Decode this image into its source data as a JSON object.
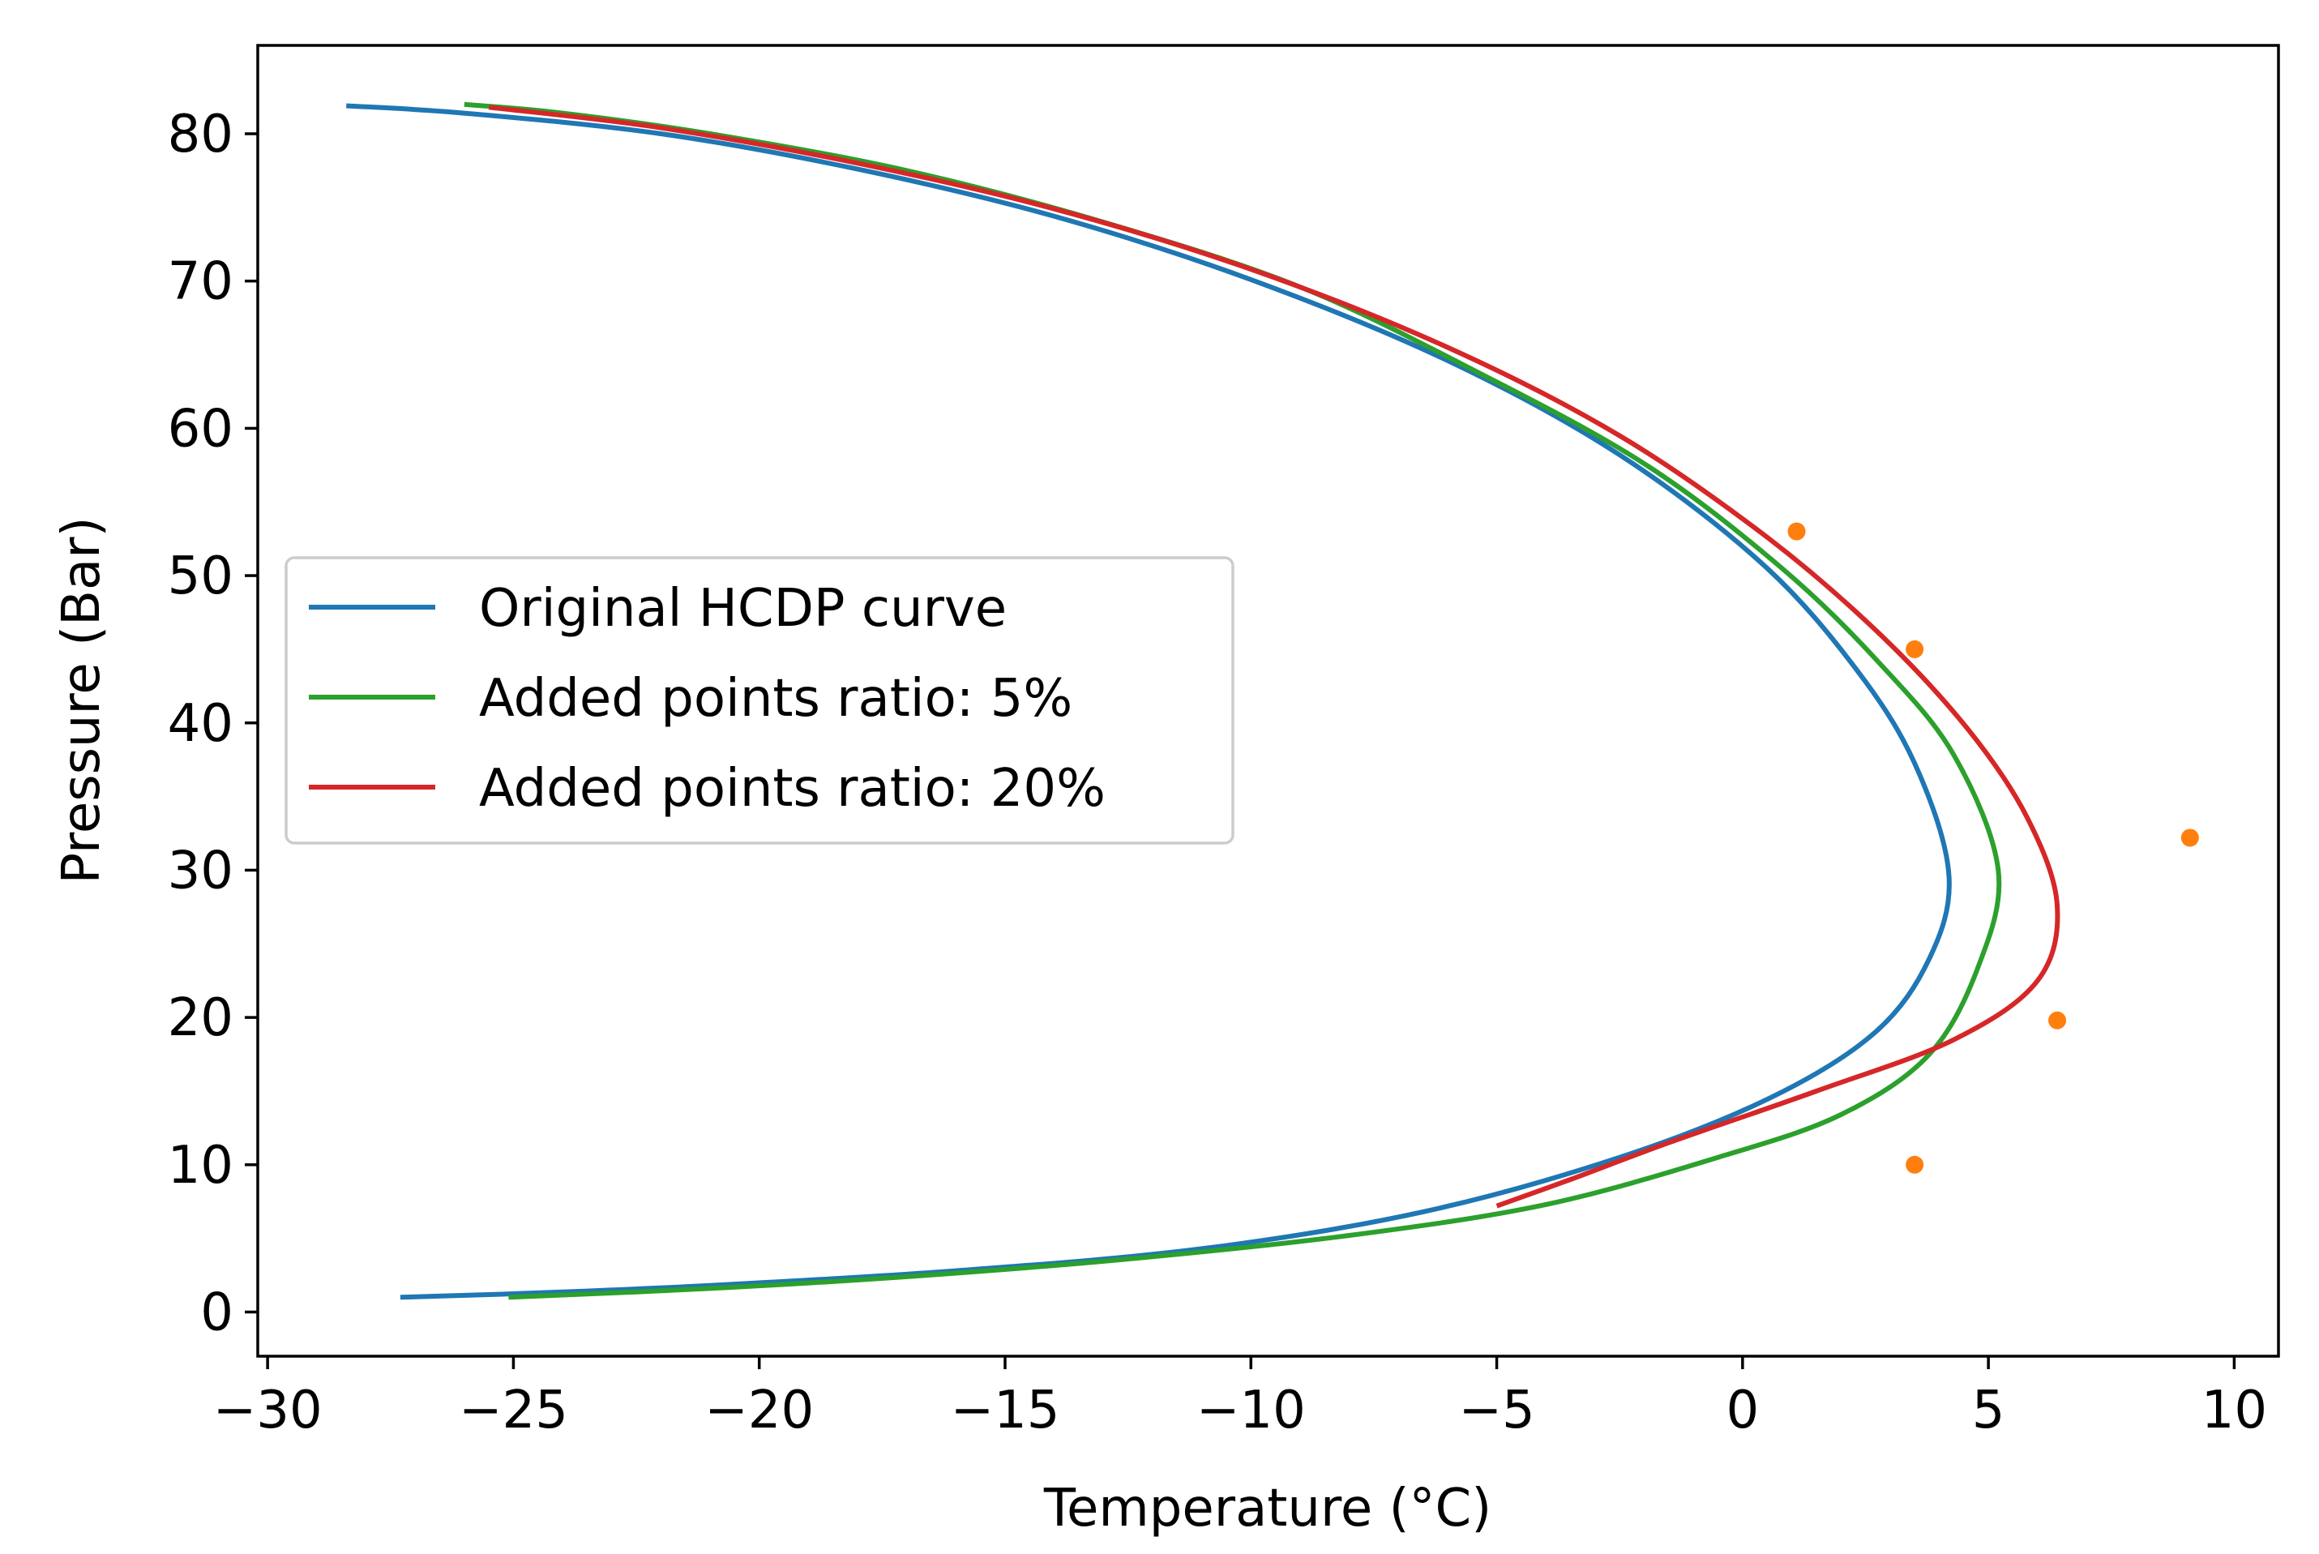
{
  "chart_data": {
    "type": "line",
    "xlabel": "Temperature (°C)",
    "ylabel": "Pressure (Bar)",
    "xlim": [
      -30.2,
      10.9
    ],
    "ylim": [
      -3,
      86
    ],
    "xticks": [
      -30,
      -25,
      -20,
      -15,
      -10,
      -5,
      0,
      5,
      10
    ],
    "xtick_labels": [
      "−30",
      "−25",
      "−20",
      "−15",
      "−10",
      "−5",
      "0",
      "5",
      "10"
    ],
    "yticks": [
      0,
      10,
      20,
      30,
      40,
      50,
      60,
      70,
      80
    ],
    "ytick_labels": [
      "0",
      "10",
      "20",
      "30",
      "40",
      "50",
      "60",
      "70",
      "80"
    ],
    "grid": false,
    "legend_position": "center-left",
    "series": [
      {
        "name": "Original HCDP curve",
        "color": "#1f77b4",
        "points": [
          [
            -28.4,
            81.9
          ],
          [
            -26.0,
            81.4
          ],
          [
            -22.0,
            80.0
          ],
          [
            -18.0,
            77.6
          ],
          [
            -14.0,
            74.4
          ],
          [
            -10.0,
            70.1
          ],
          [
            -6.0,
            64.6
          ],
          [
            -2.5,
            58.2
          ],
          [
            0.5,
            50.5
          ],
          [
            2.5,
            42.8
          ],
          [
            3.6,
            36.5
          ],
          [
            4.2,
            29.5
          ],
          [
            3.8,
            24.0
          ],
          [
            2.7,
            19.0
          ],
          [
            0.6,
            14.6
          ],
          [
            -2.5,
            10.5
          ],
          [
            -6.5,
            6.8
          ],
          [
            -11.0,
            4.3
          ],
          [
            -16.0,
            2.8
          ],
          [
            -21.0,
            1.8
          ],
          [
            -24.5,
            1.3
          ],
          [
            -27.3,
            1.0
          ]
        ]
      },
      {
        "name": "Added points ratio: 5%",
        "color": "#2ca02c",
        "points": [
          [
            -26.0,
            82.0
          ],
          [
            -24.0,
            81.4
          ],
          [
            -21.0,
            80.0
          ],
          [
            -17.0,
            77.5
          ],
          [
            -13.0,
            74.0
          ],
          [
            -9.0,
            69.6
          ],
          [
            -5.5,
            64.0
          ],
          [
            -2.0,
            57.6
          ],
          [
            0.8,
            50.5
          ],
          [
            2.8,
            44.0
          ],
          [
            4.3,
            37.8
          ],
          [
            5.2,
            30.0
          ],
          [
            4.8,
            23.5
          ],
          [
            3.8,
            17.5
          ],
          [
            2.0,
            13.4
          ],
          [
            -0.5,
            10.5
          ],
          [
            -4.0,
            7.3
          ],
          [
            -8.0,
            5.2
          ],
          [
            -12.5,
            3.6
          ],
          [
            -17.0,
            2.4
          ],
          [
            -21.0,
            1.6
          ],
          [
            -25.1,
            1.0
          ]
        ]
      },
      {
        "name": "Added points ratio: 20%",
        "color": "#d62728",
        "points": [
          [
            -25.5,
            81.8
          ],
          [
            -22.0,
            80.4
          ],
          [
            -18.0,
            78.0
          ],
          [
            -14.0,
            74.9
          ],
          [
            -10.0,
            70.8
          ],
          [
            -6.0,
            65.5
          ],
          [
            -2.5,
            59.5
          ],
          [
            0.5,
            52.6
          ],
          [
            2.8,
            46.0
          ],
          [
            4.6,
            39.5
          ],
          [
            5.8,
            33.5
          ],
          [
            6.4,
            27.6
          ],
          [
            6.0,
            22.5
          ],
          [
            4.3,
            18.5
          ],
          [
            1.5,
            15.0
          ],
          [
            -1.5,
            11.5
          ],
          [
            -3.5,
            9.0
          ],
          [
            -5.0,
            7.2
          ]
        ]
      }
    ],
    "scatter": {
      "name": "",
      "color": "#ff7f0e",
      "points": [
        [
          1.1,
          53.0
        ],
        [
          3.5,
          45.0
        ],
        [
          9.1,
          32.2
        ],
        [
          6.4,
          19.8
        ],
        [
          3.5,
          10.0
        ]
      ]
    }
  }
}
